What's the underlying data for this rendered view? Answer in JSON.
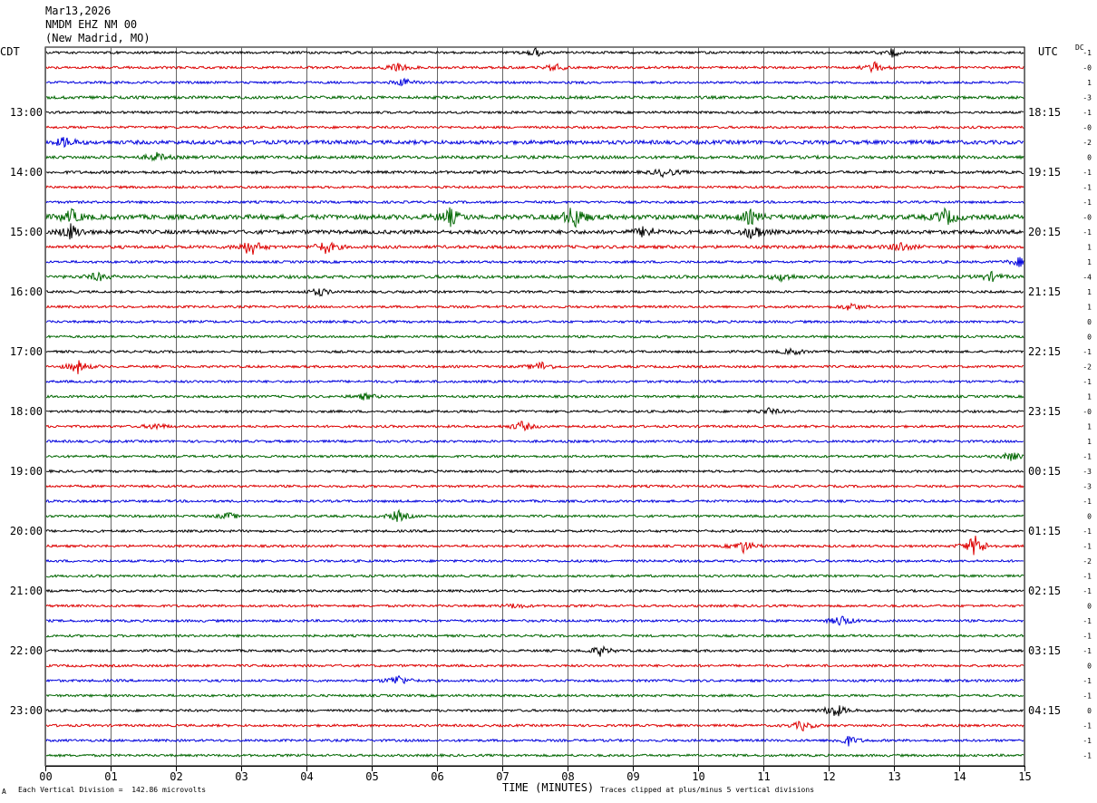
{
  "header": {
    "line1": "Mar13,2026",
    "line2": "NMDM EHZ NM 00",
    "line3": "(New Madrid, MO)"
  },
  "labels": {
    "left_tz": "CDT",
    "right_tz": "UTC",
    "dc": "DC",
    "x_axis_title": "TIME (MINUTES)",
    "footnote_left": "Each Vertical Division =  142.86 microvolts",
    "footnote_right": "Traces clipped at plus/minus 5 vertical divisions",
    "footnote_mark": "A"
  },
  "chart_data": {
    "type": "line",
    "title": "NMDM EHZ NM 00 (New Madrid, MO) Mar13,2026",
    "xlabel": "TIME (MINUTES)",
    "xlim": [
      0,
      15
    ],
    "x_ticks": [
      "00",
      "01",
      "02",
      "03",
      "04",
      "05",
      "06",
      "07",
      "08",
      "09",
      "10",
      "11",
      "12",
      "13",
      "14",
      "15"
    ],
    "left_time_labels": [
      "13:00",
      "14:00",
      "15:00",
      "16:00",
      "17:00",
      "18:00",
      "19:00",
      "20:00",
      "21:00",
      "22:00",
      "23:00"
    ],
    "right_time_labels": [
      "18:15",
      "19:15",
      "20:15",
      "21:15",
      "22:15",
      "23:15",
      "00:15",
      "01:15",
      "02:15",
      "03:15",
      "04:15"
    ],
    "trace_colors": [
      "#000000",
      "#dd0000",
      "#0000dd",
      "#006600"
    ],
    "dc_offsets": [
      "-1",
      "-0",
      "1",
      "-3",
      "-1",
      "-0",
      "-2",
      "0",
      "-1",
      "-1",
      "-1",
      "-0",
      "-1",
      "1",
      "1",
      "-4",
      "1",
      "1",
      "0",
      "0",
      "-1",
      "-2",
      "-1",
      "1",
      "-0",
      "1",
      "1",
      "-1",
      "-3",
      "-3",
      "-1",
      "0",
      "-1",
      "-1",
      "-2",
      "-1",
      "-1",
      "0",
      "-1",
      "-1",
      "-1",
      "0",
      "-1",
      "-1",
      "0",
      "-1",
      "-1",
      "-1"
    ],
    "amplitude_unit": "Each Vertical Division =  142.86 microvolts",
    "clipping": "Traces clipped at plus/minus 5 vertical divisions",
    "events": [
      {
        "row": 0,
        "minute": 7.5,
        "amp": 0.5
      },
      {
        "row": 0,
        "minute": 12.95,
        "amp": 0.6
      },
      {
        "row": 1,
        "minute": 5.4,
        "amp": 0.5
      },
      {
        "row": 1,
        "minute": 7.8,
        "amp": 0.5
      },
      {
        "row": 1,
        "minute": 12.7,
        "amp": 0.6
      },
      {
        "row": 2,
        "minute": 5.5,
        "amp": 0.4
      },
      {
        "row": 6,
        "minute": 0.3,
        "amp": 0.6
      },
      {
        "row": 7,
        "minute": 1.7,
        "amp": 0.5
      },
      {
        "row": 8,
        "minute": 9.5,
        "amp": 0.6
      },
      {
        "row": 11,
        "minute": 0.4,
        "amp": 0.8
      },
      {
        "row": 11,
        "minute": 6.2,
        "amp": 1.0
      },
      {
        "row": 11,
        "minute": 8.1,
        "amp": 1.5
      },
      {
        "row": 11,
        "minute": 10.8,
        "amp": 0.8
      },
      {
        "row": 11,
        "minute": 13.8,
        "amp": 1.0
      },
      {
        "row": 12,
        "minute": 0.4,
        "amp": 1.0
      },
      {
        "row": 12,
        "minute": 9.2,
        "amp": 0.8
      },
      {
        "row": 12,
        "minute": 10.85,
        "amp": 1.0
      },
      {
        "row": 13,
        "minute": 3.15,
        "amp": 1.1
      },
      {
        "row": 13,
        "minute": 4.3,
        "amp": 0.8
      },
      {
        "row": 13,
        "minute": 13.1,
        "amp": 0.6
      },
      {
        "row": 14,
        "minute": 14.95,
        "amp": 0.7
      },
      {
        "row": 15,
        "minute": 0.8,
        "amp": 0.5
      },
      {
        "row": 15,
        "minute": 11.3,
        "amp": 0.5
      },
      {
        "row": 15,
        "minute": 14.5,
        "amp": 0.5
      },
      {
        "row": 16,
        "minute": 4.2,
        "amp": 0.5
      },
      {
        "row": 17,
        "minute": 12.35,
        "amp": 0.5
      },
      {
        "row": 20,
        "minute": 11.45,
        "amp": 0.4
      },
      {
        "row": 21,
        "minute": 0.5,
        "amp": 0.8
      },
      {
        "row": 21,
        "minute": 7.6,
        "amp": 0.6
      },
      {
        "row": 23,
        "minute": 4.9,
        "amp": 0.4
      },
      {
        "row": 24,
        "minute": 11.1,
        "amp": 0.4
      },
      {
        "row": 25,
        "minute": 1.7,
        "amp": 0.4
      },
      {
        "row": 25,
        "minute": 7.3,
        "amp": 0.6
      },
      {
        "row": 27,
        "minute": 14.8,
        "amp": 0.5
      },
      {
        "row": 31,
        "minute": 2.8,
        "amp": 0.4
      },
      {
        "row": 31,
        "minute": 5.4,
        "amp": 0.7
      },
      {
        "row": 33,
        "minute": 10.7,
        "amp": 0.8
      },
      {
        "row": 33,
        "minute": 14.25,
        "amp": 1.4
      },
      {
        "row": 37,
        "minute": 7.2,
        "amp": 0.3
      },
      {
        "row": 38,
        "minute": 12.2,
        "amp": 0.7
      },
      {
        "row": 40,
        "minute": 8.5,
        "amp": 0.6
      },
      {
        "row": 42,
        "minute": 5.4,
        "amp": 0.7
      },
      {
        "row": 44,
        "minute": 12.1,
        "amp": 0.9
      },
      {
        "row": 45,
        "minute": 11.6,
        "amp": 0.6
      },
      {
        "row": 46,
        "minute": 12.3,
        "amp": 0.6
      }
    ]
  }
}
